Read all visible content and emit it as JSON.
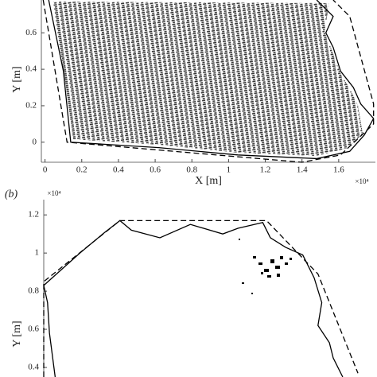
{
  "chart_data": [
    {
      "type": "line",
      "panel_label": null,
      "x_label": "X [m]",
      "y_label": "Y [m]",
      "x_multiplier": "×10⁴",
      "xlim": [
        -0.02,
        1.8
      ],
      "ylim": [
        -0.11,
        0.78
      ],
      "xticks": [
        0,
        0.2,
        0.4,
        0.6,
        0.8,
        1,
        1.2,
        1.4,
        1.6
      ],
      "yticks": [
        0,
        0.2,
        0.4,
        0.6
      ],
      "series": [
        {
          "color": "#000000",
          "dashed": false,
          "x": [
            0.02,
            0.1,
            0.14,
            0.62,
            1.05,
            1.48,
            1.66,
            1.74,
            1.79,
            1.72,
            1.68,
            1.61,
            1.57,
            1.53,
            1.57,
            1.48
          ],
          "values": [
            0.78,
            0.39,
            0.0,
            -0.03,
            -0.07,
            -0.09,
            -0.05,
            0.04,
            0.13,
            0.21,
            0.3,
            0.39,
            0.52,
            0.6,
            0.69,
            0.78
          ]
        },
        {
          "color": "#000000",
          "dashed": true,
          "x": [
            -0.01,
            0.12,
            1.4,
            1.61,
            1.79,
            1.79,
            1.66,
            1.57
          ],
          "values": [
            0.78,
            0.0,
            -0.11,
            -0.07,
            0.1,
            0.21,
            0.69,
            0.78
          ]
        }
      ]
    },
    {
      "type": "line",
      "panel_label": "(b)",
      "y_label": "Y [m]",
      "y_multiplier": "×10⁴",
      "xlim": [
        0,
        1.75
      ],
      "ylim": [
        0.35,
        1.28
      ],
      "yticks": [
        0.4,
        0.6,
        0.8,
        1,
        1.2
      ],
      "series": [
        {
          "color": "#000000",
          "dashed": false,
          "x": [
            0.06,
            0.03,
            0.02,
            0,
            0.19,
            0.31,
            0.4,
            0.46,
            0.61,
            0.77,
            0.94,
            1.02,
            1.15,
            1.19,
            1.27,
            1.36,
            1.42,
            1.46,
            1.44,
            1.5,
            1.52,
            1.57
          ],
          "values": [
            0.35,
            0.58,
            0.74,
            0.83,
            1.0,
            1.1,
            1.17,
            1.12,
            1.08,
            1.15,
            1.1,
            1.13,
            1.16,
            1.08,
            1.03,
            0.99,
            0.87,
            0.74,
            0.62,
            0.53,
            0.45,
            0.35
          ]
        },
        {
          "color": "#000000",
          "dashed": true,
          "x": [
            0,
            0,
            0.4,
            1.17,
            1.44,
            1.65
          ],
          "values": [
            0.35,
            0.85,
            1.17,
            1.17,
            0.89,
            0.37
          ]
        }
      ]
    }
  ]
}
